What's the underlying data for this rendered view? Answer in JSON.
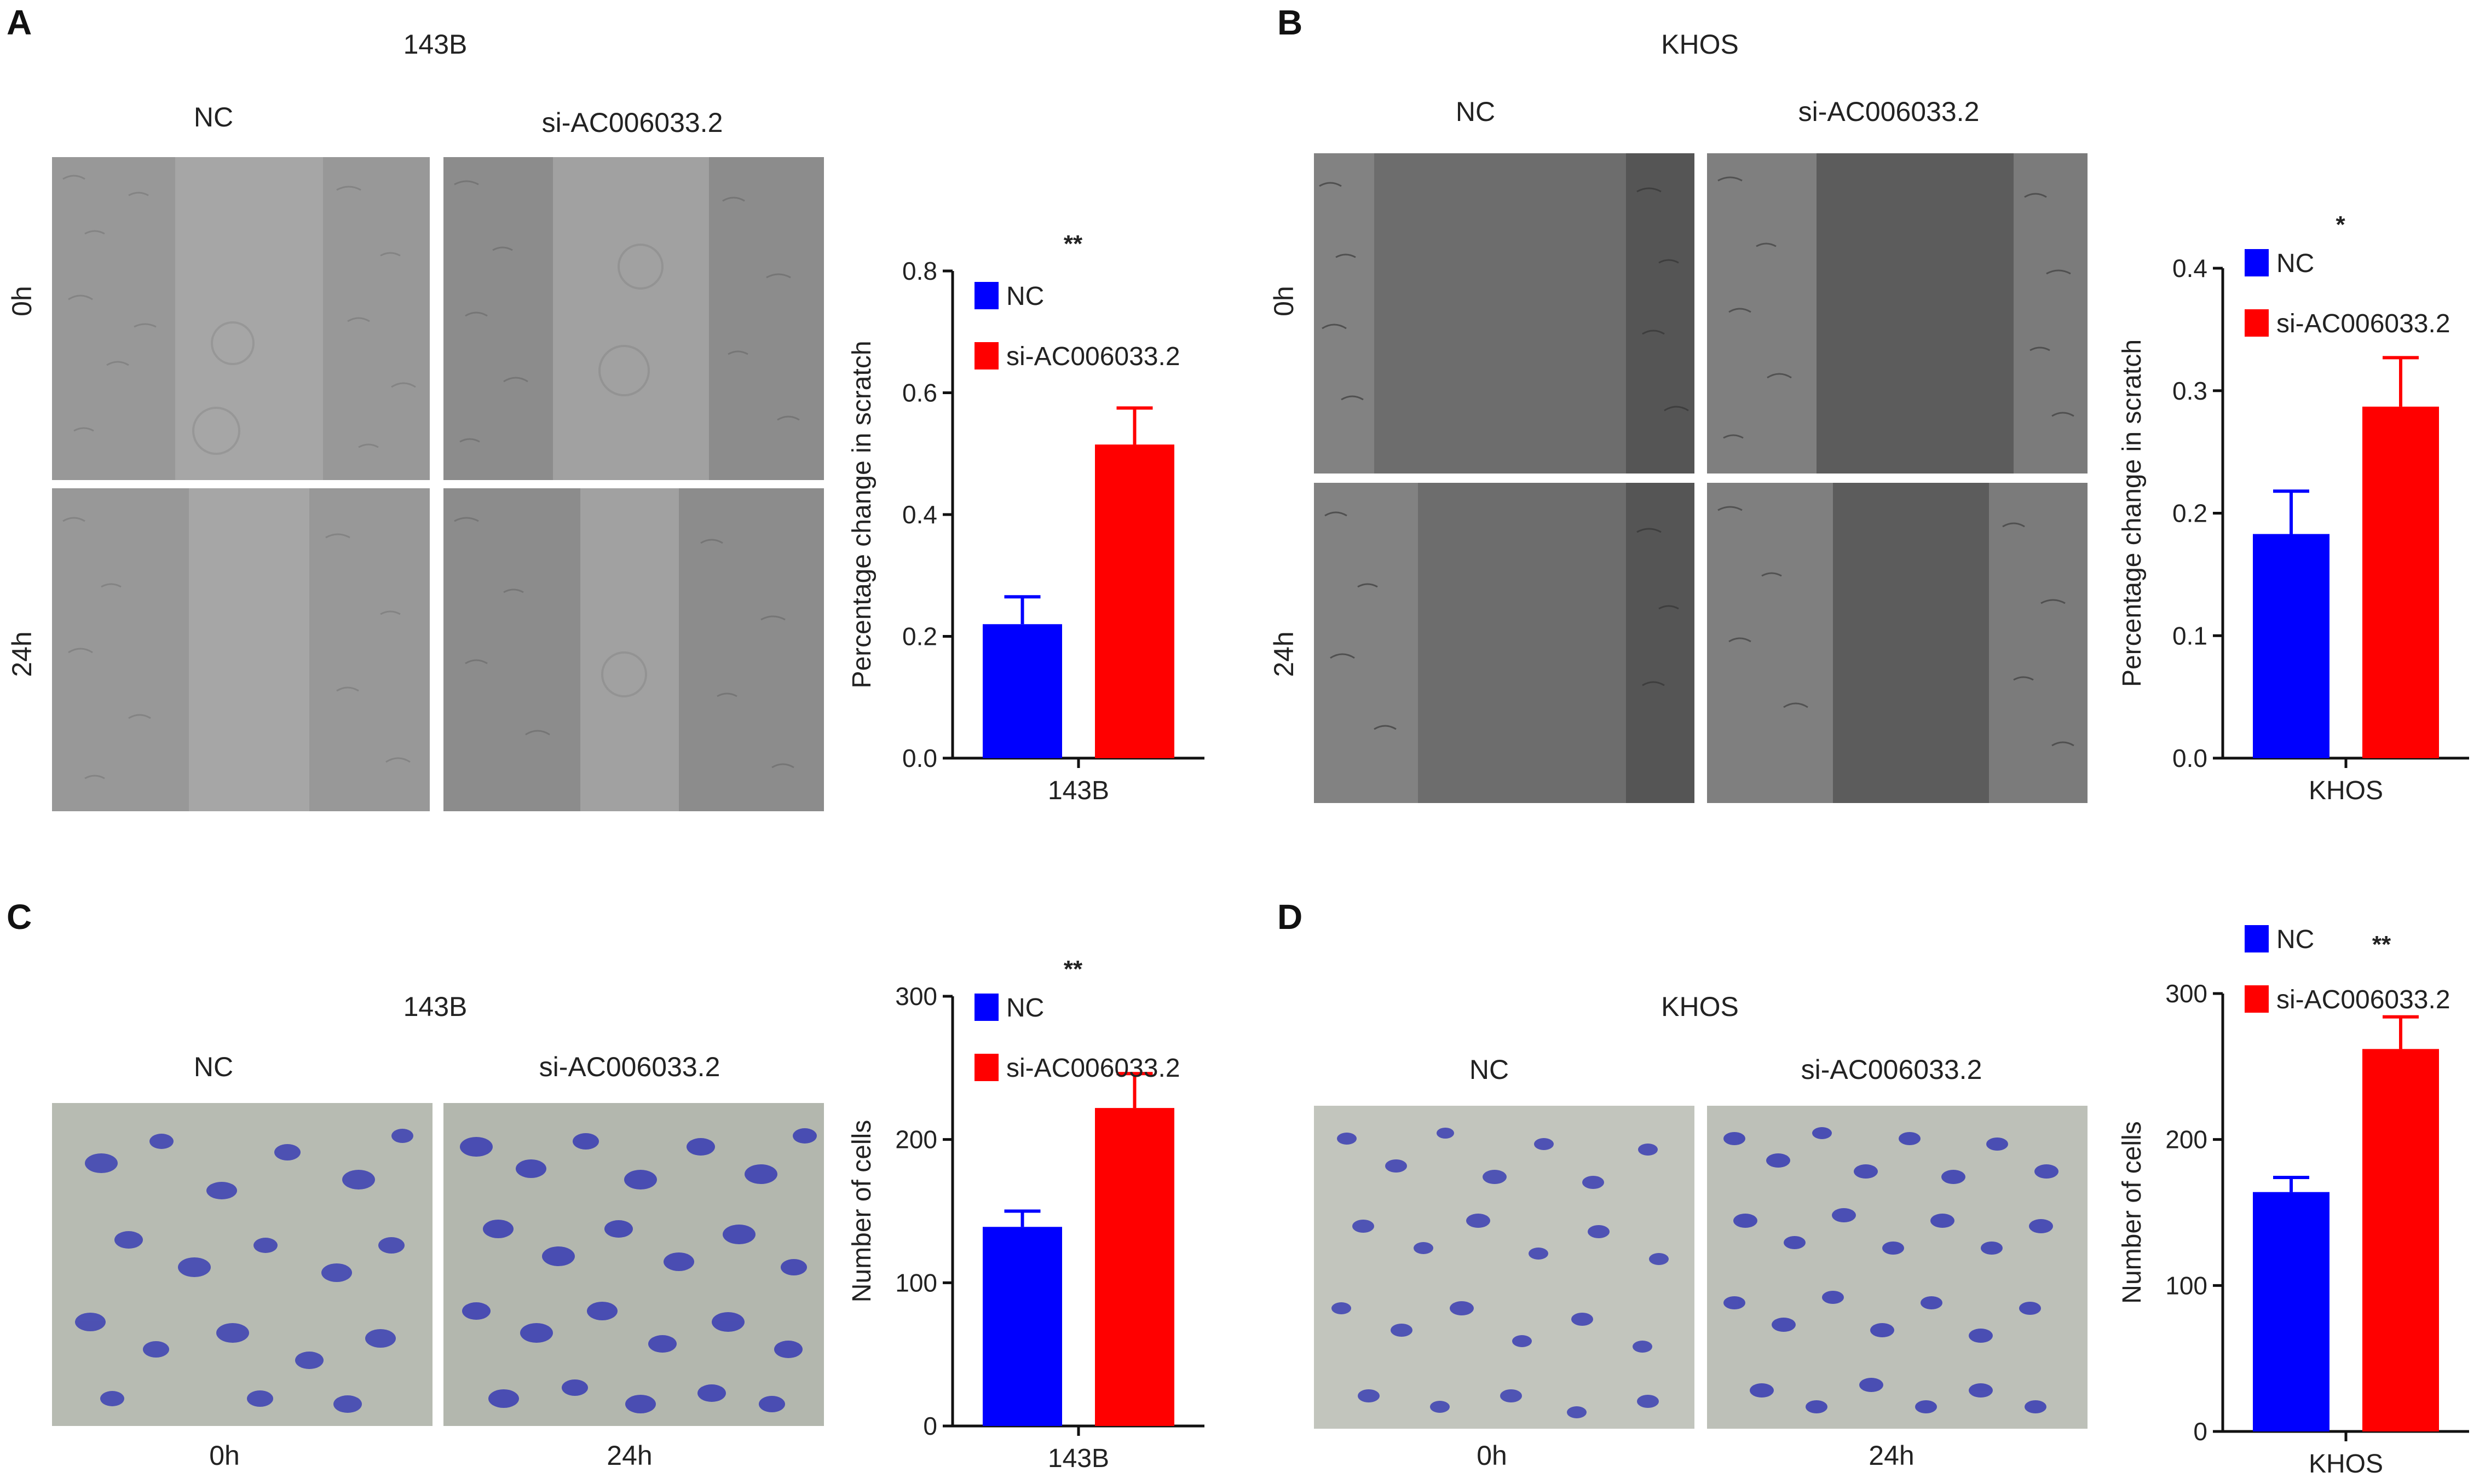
{
  "panels": {
    "A": {
      "letter": "A",
      "title": "143B",
      "col_labels": [
        "NC",
        "si-AC006033.2"
      ],
      "row_labels": [
        "0h",
        "24h"
      ]
    },
    "B": {
      "letter": "B",
      "title": "KHOS",
      "col_labels": [
        "NC",
        "si-AC006033.2"
      ],
      "row_labels": [
        "0h",
        "24h"
      ]
    },
    "C": {
      "letter": "C",
      "title": "143B",
      "col_labels": [
        "NC",
        "si-AC006033.2"
      ],
      "bottom_labels": [
        "0h",
        "24h"
      ]
    },
    "D": {
      "letter": "D",
      "title": "KHOS",
      "col_labels": [
        "NC",
        "si-AC006033.2"
      ],
      "bottom_labels": [
        "0h",
        "24h"
      ]
    }
  },
  "colors": {
    "nc": "#0000ff",
    "si": "#ff0000",
    "scratch_bg": "#a9a9a9",
    "scratch_bg_dark": "#7d7d7d",
    "transwell_bg": "#b9bdb4",
    "transwell_cell": "#3b3fb3"
  },
  "chart_data": [
    {
      "type": "bar",
      "panel": "A",
      "categories": [
        "143B"
      ],
      "series": [
        {
          "name": "NC",
          "values": [
            0.22
          ],
          "error": [
            0.045
          ]
        },
        {
          "name": "si-AC006033.2",
          "values": [
            0.515
          ],
          "error": [
            0.06
          ]
        }
      ],
      "ylabel": "Percentage change in scratch",
      "xlabel": "143B",
      "ylim": [
        0,
        0.8
      ],
      "yticks": [
        "0.0",
        "0.2",
        "0.4",
        "0.6",
        "0.8"
      ],
      "significance": "**",
      "legend": "top-left"
    },
    {
      "type": "bar",
      "panel": "B",
      "categories": [
        "KHOS"
      ],
      "series": [
        {
          "name": "NC",
          "values": [
            0.183
          ],
          "error": [
            0.035
          ]
        },
        {
          "name": "si-AC006033.2",
          "values": [
            0.287
          ],
          "error": [
            0.04
          ]
        }
      ],
      "ylabel": "Percentage change in scratch",
      "xlabel": "KHOS",
      "ylim": [
        0,
        0.4
      ],
      "yticks": [
        "0.0",
        "0.1",
        "0.2",
        "0.3",
        "0.4"
      ],
      "significance": "*",
      "legend": "top-left"
    },
    {
      "type": "bar",
      "panel": "C",
      "categories": [
        "143B"
      ],
      "series": [
        {
          "name": "NC",
          "values": [
            139
          ],
          "error": [
            11
          ]
        },
        {
          "name": "si-AC006033.2",
          "values": [
            222
          ],
          "error": [
            24
          ]
        }
      ],
      "ylabel": "Number of cells",
      "xlabel": "143B",
      "ylim": [
        0,
        300
      ],
      "yticks": [
        "0",
        "100",
        "200",
        "300"
      ],
      "significance": "**",
      "legend": "top-left"
    },
    {
      "type": "bar",
      "panel": "D",
      "categories": [
        "KHOS"
      ],
      "series": [
        {
          "name": "NC",
          "values": [
            164
          ],
          "error": [
            10
          ]
        },
        {
          "name": "si-AC006033.2",
          "values": [
            262
          ],
          "error": [
            22
          ]
        }
      ],
      "ylabel": "Number of cells",
      "xlabel": "KHOS",
      "ylim": [
        0,
        300
      ],
      "yticks": [
        "0",
        "100",
        "200",
        "300"
      ],
      "significance": "**",
      "legend": "top-left"
    }
  ]
}
